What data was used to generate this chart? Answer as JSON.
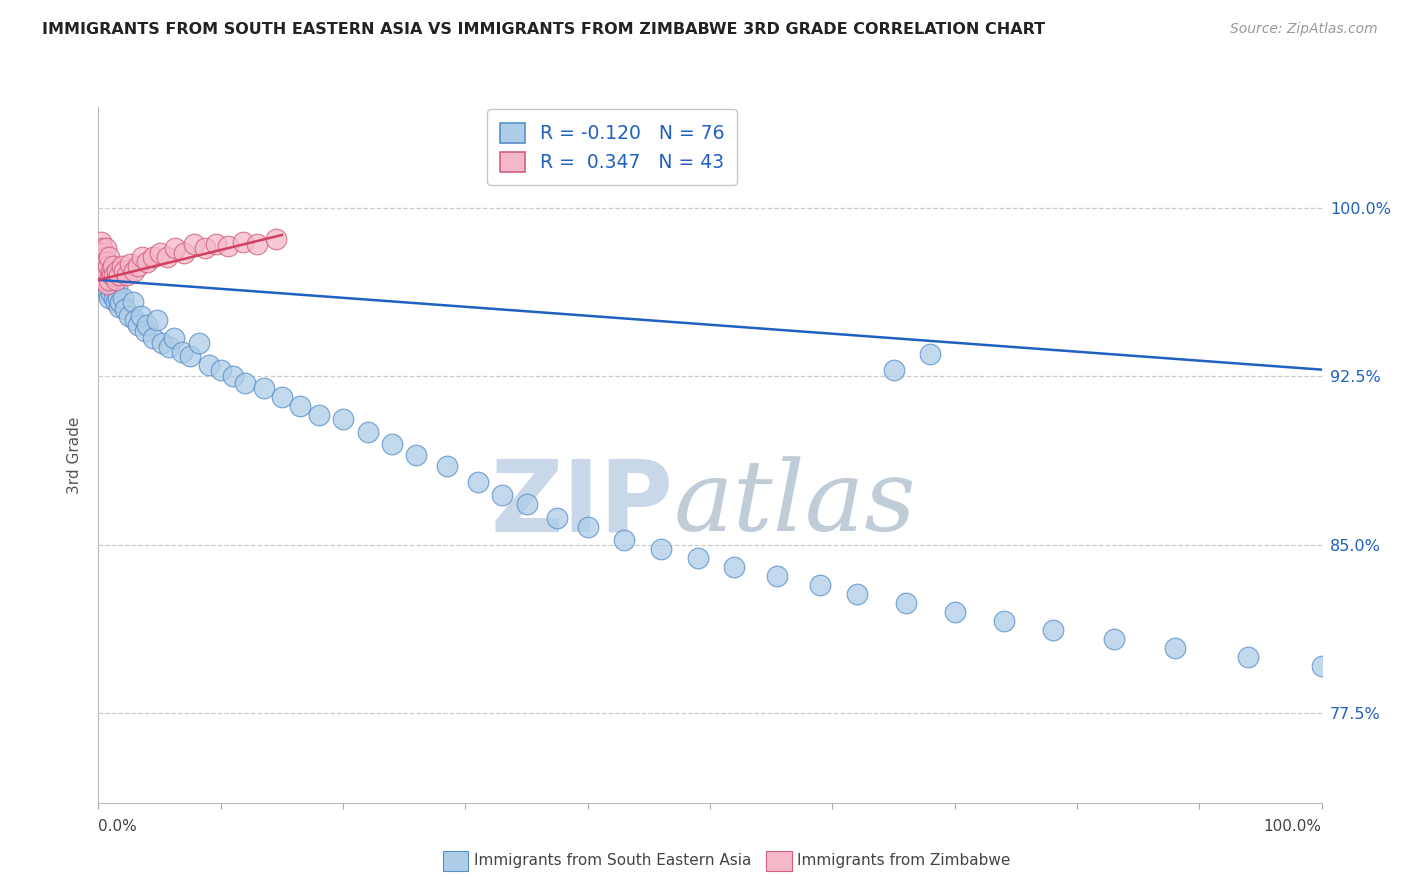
{
  "title": "IMMIGRANTS FROM SOUTH EASTERN ASIA VS IMMIGRANTS FROM ZIMBABWE 3RD GRADE CORRELATION CHART",
  "source": "Source: ZipAtlas.com",
  "ylabel": "3rd Grade",
  "ytick_labels": [
    "77.5%",
    "85.0%",
    "92.5%",
    "100.0%"
  ],
  "ytick_values": [
    0.775,
    0.85,
    0.925,
    1.0
  ],
  "xlim": [
    0.0,
    1.0
  ],
  "ylim": [
    0.735,
    1.045
  ],
  "legend_blue_R": "-0.120",
  "legend_blue_N": "76",
  "legend_pink_R": "0.347",
  "legend_pink_N": "43",
  "legend_label_blue": "Immigrants from South Eastern Asia",
  "legend_label_pink": "Immigrants from Zimbabwe",
  "blue_color": "#aecde8",
  "blue_edge_color": "#5a8fc8",
  "pink_color": "#f5b8c8",
  "pink_edge_color": "#d06080",
  "blue_line_color": "#2060c0",
  "pink_line_color": "#d04060",
  "watermark_zip_color": "#c8d8e8",
  "watermark_atlas_color": "#c0ccd8",
  "blue_scatter_x": [
    0.002,
    0.003,
    0.004,
    0.004,
    0.005,
    0.005,
    0.006,
    0.006,
    0.007,
    0.007,
    0.008,
    0.008,
    0.009,
    0.009,
    0.01,
    0.01,
    0.011,
    0.012,
    0.013,
    0.014,
    0.015,
    0.016,
    0.017,
    0.018,
    0.02,
    0.022,
    0.025,
    0.028,
    0.03,
    0.032,
    0.035,
    0.038,
    0.04,
    0.045,
    0.048,
    0.052,
    0.058,
    0.062,
    0.068,
    0.075,
    0.082,
    0.09,
    0.1,
    0.11,
    0.12,
    0.135,
    0.15,
    0.165,
    0.18,
    0.2,
    0.22,
    0.24,
    0.26,
    0.285,
    0.31,
    0.33,
    0.35,
    0.375,
    0.4,
    0.43,
    0.46,
    0.49,
    0.52,
    0.555,
    0.59,
    0.62,
    0.66,
    0.7,
    0.74,
    0.78,
    0.83,
    0.88,
    0.94,
    1.0,
    0.65,
    0.68
  ],
  "blue_scatter_y": [
    0.98,
    0.975,
    0.98,
    0.972,
    0.978,
    0.968,
    0.976,
    0.966,
    0.974,
    0.964,
    0.972,
    0.962,
    0.97,
    0.96,
    0.972,
    0.962,
    0.968,
    0.964,
    0.96,
    0.958,
    0.965,
    0.96,
    0.956,
    0.958,
    0.96,
    0.955,
    0.952,
    0.958,
    0.95,
    0.948,
    0.952,
    0.945,
    0.948,
    0.942,
    0.95,
    0.94,
    0.938,
    0.942,
    0.936,
    0.934,
    0.94,
    0.93,
    0.928,
    0.925,
    0.922,
    0.92,
    0.916,
    0.912,
    0.908,
    0.906,
    0.9,
    0.895,
    0.89,
    0.885,
    0.878,
    0.872,
    0.868,
    0.862,
    0.858,
    0.852,
    0.848,
    0.844,
    0.84,
    0.836,
    0.832,
    0.828,
    0.824,
    0.82,
    0.816,
    0.812,
    0.808,
    0.804,
    0.8,
    0.796,
    0.928,
    0.935
  ],
  "pink_scatter_x": [
    0.001,
    0.002,
    0.002,
    0.003,
    0.003,
    0.004,
    0.004,
    0.005,
    0.005,
    0.006,
    0.006,
    0.007,
    0.007,
    0.008,
    0.009,
    0.009,
    0.01,
    0.011,
    0.012,
    0.013,
    0.014,
    0.015,
    0.017,
    0.019,
    0.021,
    0.023,
    0.026,
    0.029,
    0.032,
    0.036,
    0.04,
    0.045,
    0.05,
    0.056,
    0.063,
    0.07,
    0.078,
    0.087,
    0.096,
    0.106,
    0.118,
    0.13,
    0.145
  ],
  "pink_scatter_y": [
    0.98,
    0.985,
    0.975,
    0.982,
    0.972,
    0.98,
    0.97,
    0.978,
    0.968,
    0.982,
    0.972,
    0.976,
    0.966,
    0.974,
    0.978,
    0.968,
    0.972,
    0.97,
    0.974,
    0.97,
    0.968,
    0.972,
    0.97,
    0.974,
    0.972,
    0.97,
    0.975,
    0.972,
    0.974,
    0.978,
    0.976,
    0.978,
    0.98,
    0.978,
    0.982,
    0.98,
    0.984,
    0.982,
    0.984,
    0.983,
    0.985,
    0.984,
    0.986
  ],
  "blue_trend_x": [
    0.0,
    1.0
  ],
  "blue_trend_y": [
    0.968,
    0.928
  ],
  "pink_trend_x": [
    0.0,
    0.15
  ],
  "pink_trend_y": [
    0.968,
    0.988
  ],
  "bottom_tick_x": [
    0.0,
    0.1,
    0.2,
    0.3,
    0.4,
    0.5,
    0.6,
    0.7,
    0.8,
    0.9,
    1.0
  ]
}
